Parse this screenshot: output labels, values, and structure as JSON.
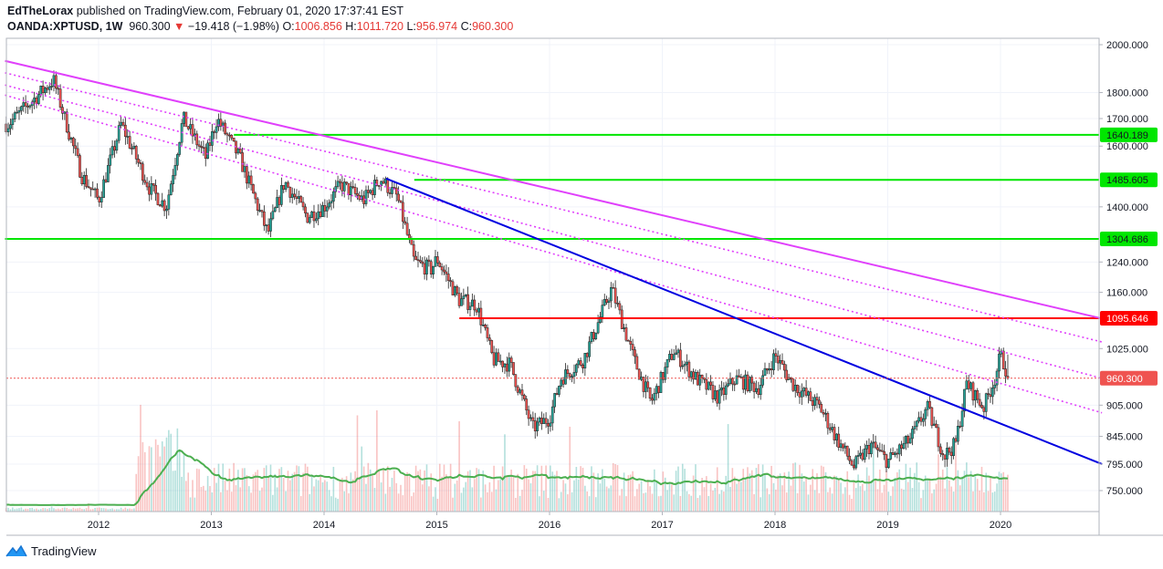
{
  "header": {
    "author": "EdTheLorax",
    "published_text": "published on TradingView.com, February 01, 2020 17:37:41 EST",
    "symbol": "OANDA:XPTUSD, 1W",
    "last": "960.300",
    "change": "−19.418 (−1.98%)",
    "o_label": "O:",
    "o": "1006.856",
    "h_label": "H:",
    "h": "1011.720",
    "l_label": "L:",
    "l": "956.974",
    "c_label": "C:",
    "c": "960.300"
  },
  "footer": {
    "brand": "TradingView",
    "logo_icon": "tradingview-logo-icon"
  },
  "colors": {
    "bull": "#26a69a",
    "bear": "#ef5350",
    "green_line": "#00e600",
    "red_line": "#ff0000",
    "magenta": "#e040fb",
    "blue": "#0000e0",
    "ma": "#4caf50",
    "last_price": "#ef5350"
  },
  "chart_data": {
    "type": "candlestick",
    "scale": "log",
    "x_ticks": [
      "2012",
      "2013",
      "2014",
      "2015",
      "2016",
      "2017",
      "2018",
      "2019",
      "2020"
    ],
    "y_ticks": [
      "2000.000",
      "1800.000",
      "1700.000",
      "1600.000",
      "1400.000",
      "1240.000",
      "1160.000",
      "1025.000",
      "905.000",
      "845.000",
      "795.000",
      "750.000"
    ],
    "y_tick_values": [
      2000,
      1800,
      1700,
      1600,
      1400,
      1240,
      1160,
      1025,
      905,
      845,
      795,
      750
    ],
    "price_path": [
      [
        2011.2,
        1680
      ],
      [
        2011.6,
        1850
      ],
      [
        2011.85,
        1500
      ],
      [
        2012.0,
        1420
      ],
      [
        2012.2,
        1680
      ],
      [
        2012.45,
        1460
      ],
      [
        2012.6,
        1400
      ],
      [
        2012.75,
        1700
      ],
      [
        2012.95,
        1560
      ],
      [
        2013.05,
        1700
      ],
      [
        2013.25,
        1560
      ],
      [
        2013.5,
        1320
      ],
      [
        2013.65,
        1480
      ],
      [
        2013.85,
        1370
      ],
      [
        2014.0,
        1400
      ],
      [
        2014.15,
        1470
      ],
      [
        2014.35,
        1420
      ],
      [
        2014.5,
        1490
      ],
      [
        2014.65,
        1430
      ],
      [
        2014.8,
        1240
      ],
      [
        2014.95,
        1220
      ],
      [
        2015.0,
        1250
      ],
      [
        2015.2,
        1140
      ],
      [
        2015.35,
        1130
      ],
      [
        2015.5,
        1000
      ],
      [
        2015.65,
        990
      ],
      [
        2015.85,
        860
      ],
      [
        2016.0,
        880
      ],
      [
        2016.1,
        960
      ],
      [
        2016.3,
        1000
      ],
      [
        2016.55,
        1170
      ],
      [
        2016.75,
        1000
      ],
      [
        2016.9,
        910
      ],
      [
        2017.1,
        1020
      ],
      [
        2017.3,
        960
      ],
      [
        2017.5,
        920
      ],
      [
        2017.65,
        960
      ],
      [
        2017.85,
        940
      ],
      [
        2018.0,
        1010
      ],
      [
        2018.15,
        950
      ],
      [
        2018.4,
        900
      ],
      [
        2018.55,
        840
      ],
      [
        2018.7,
        790
      ],
      [
        2018.85,
        830
      ],
      [
        2019.0,
        800
      ],
      [
        2019.2,
        840
      ],
      [
        2019.35,
        900
      ],
      [
        2019.5,
        810
      ],
      [
        2019.6,
        830
      ],
      [
        2019.7,
        950
      ],
      [
        2019.85,
        900
      ],
      [
        2019.95,
        960
      ],
      [
        2020.0,
        1010
      ],
      [
        2020.08,
        960.3
      ]
    ],
    "horizontal_levels": [
      {
        "label": "1640.189",
        "value": 1640.189,
        "color": "green",
        "from_x": 2013.2
      },
      {
        "label": "1485.605",
        "value": 1485.605,
        "color": "green",
        "from_x": 2014.8
      },
      {
        "label": "1304.686",
        "value": 1304.686,
        "color": "green",
        "from_x": 2011.17
      },
      {
        "label": "1095.646",
        "value": 1095.646,
        "color": "red",
        "from_x": 2015.2
      }
    ],
    "last_price_label": "960.300",
    "last_price": 960.3,
    "trendlines": [
      {
        "style": "solid",
        "color": "magenta",
        "from": [
          2011.17,
          1930
        ],
        "to": [
          2020.9,
          1095
        ]
      },
      {
        "style": "dotted",
        "color": "magenta",
        "from": [
          2011.17,
          1880
        ],
        "to": [
          2020.9,
          1040
        ]
      },
      {
        "style": "dotted",
        "color": "magenta",
        "from": [
          2011.17,
          1830
        ],
        "to": [
          2020.9,
          960
        ]
      },
      {
        "style": "dotted",
        "color": "magenta",
        "from": [
          2011.17,
          1790
        ],
        "to": [
          2020.9,
          890
        ]
      },
      {
        "style": "solid",
        "color": "blue",
        "from": [
          2014.55,
          1490
        ],
        "to": [
          2020.9,
          795
        ]
      }
    ],
    "volume": {
      "shown": true,
      "moving_average": true
    },
    "grid": true
  }
}
